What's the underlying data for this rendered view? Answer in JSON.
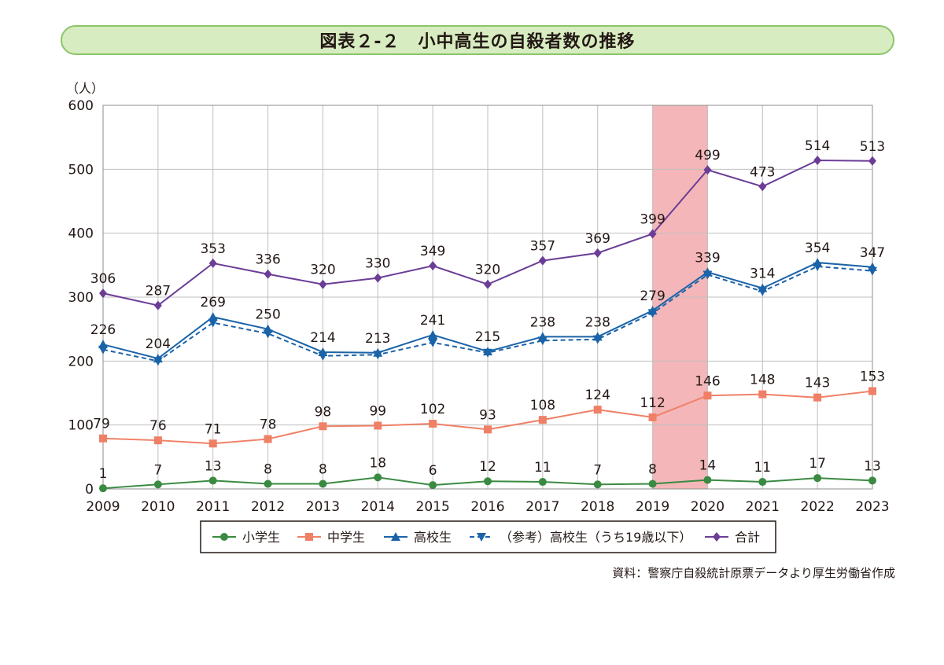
{
  "title": "図表２-２　小中高生の自殺者数の推移",
  "source": "資料：警察庁自殺統計原票データより厚生労働省作成",
  "chart_data": {
    "type": "line",
    "ylabel": "（人）",
    "xlabel": "",
    "ylim": [
      0,
      600
    ],
    "yticks": [
      0,
      100,
      200,
      300,
      400,
      500,
      600
    ],
    "categories": [
      "2009",
      "2010",
      "2011",
      "2012",
      "2013",
      "2014",
      "2015",
      "2016",
      "2017",
      "2018",
      "2019",
      "2020",
      "2021",
      "2022",
      "2023"
    ],
    "highlight": {
      "from": "2019",
      "to": "2020",
      "color": "#f4b6b8"
    },
    "grid": true,
    "legend_position": "bottom",
    "series": [
      {
        "name": "小学生",
        "color": "#3a8a42",
        "marker": "circle",
        "dashed": false,
        "labels": true,
        "values": [
          1,
          7,
          13,
          8,
          8,
          18,
          6,
          12,
          11,
          7,
          8,
          14,
          11,
          17,
          13
        ]
      },
      {
        "name": "中学生",
        "color": "#ef8066",
        "marker": "square",
        "dashed": false,
        "labels": true,
        "values": [
          79,
          76,
          71,
          78,
          98,
          99,
          102,
          93,
          108,
          124,
          112,
          146,
          148,
          143,
          153
        ]
      },
      {
        "name": "高校生",
        "color": "#1b63a8",
        "marker": "triangle-up",
        "dashed": false,
        "labels": true,
        "values": [
          226,
          204,
          269,
          250,
          214,
          213,
          241,
          215,
          238,
          238,
          279,
          339,
          314,
          354,
          347
        ]
      },
      {
        "name": "（参考）高校生（うち19歳以下）",
        "color": "#1b63a8",
        "marker": "triangle-down",
        "dashed": true,
        "labels": false,
        "values": [
          218,
          200,
          260,
          243,
          208,
          210,
          229,
          213,
          232,
          234,
          275,
          335,
          309,
          348,
          341
        ]
      },
      {
        "name": "合計",
        "color": "#6b3d96",
        "marker": "diamond",
        "dashed": false,
        "labels": true,
        "values": [
          306,
          287,
          353,
          336,
          320,
          330,
          349,
          320,
          357,
          369,
          399,
          499,
          473,
          514,
          513
        ]
      }
    ]
  }
}
